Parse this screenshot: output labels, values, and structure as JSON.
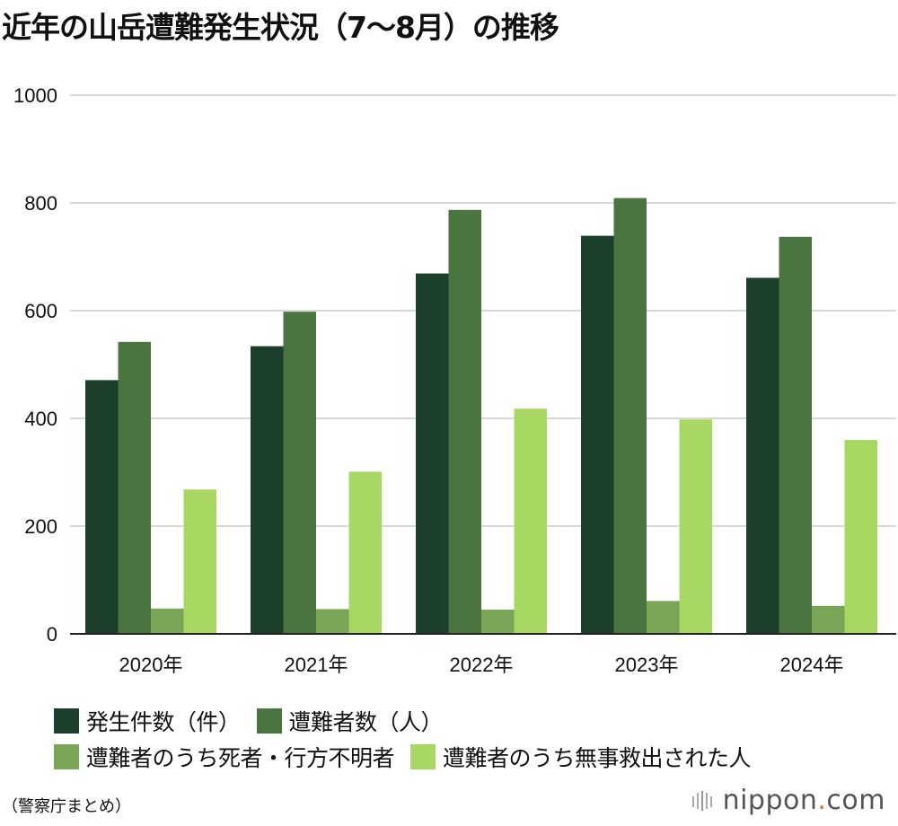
{
  "title": "近年の山岳遭難発生状況（7〜8月）の推移",
  "source": "（警察庁まとめ）",
  "brand": {
    "name": "nippon",
    "dot": ".",
    "suffix": "com"
  },
  "colors": {
    "series": [
      "#1c3f2b",
      "#4a7540",
      "#7aa556",
      "#a9d763"
    ],
    "grid": "#cccccc",
    "axis": "#222222"
  },
  "chart_data": {
    "type": "bar",
    "title": "近年の山岳遭難発生状況（7〜8月）の推移",
    "xlabel": "",
    "ylabel": "",
    "ylim": [
      0,
      1000
    ],
    "yticks": [
      0,
      200,
      400,
      600,
      800,
      1000
    ],
    "grid": true,
    "legend_position": "bottom",
    "categories": [
      "2020年",
      "2021年",
      "2022年",
      "2023年",
      "2024年"
    ],
    "series": [
      {
        "name": "発生件数（件）",
        "values": [
          471,
          534,
          669,
          739,
          661
        ]
      },
      {
        "name": "遭難者数（人）",
        "values": [
          542,
          598,
          787,
          809,
          737
        ]
      },
      {
        "name": "遭難者のうち死者・行方不明者",
        "values": [
          47,
          46,
          45,
          61,
          52
        ]
      },
      {
        "name": "遭難者のうち無事救出された人",
        "values": [
          268,
          301,
          418,
          398,
          360
        ]
      }
    ]
  }
}
